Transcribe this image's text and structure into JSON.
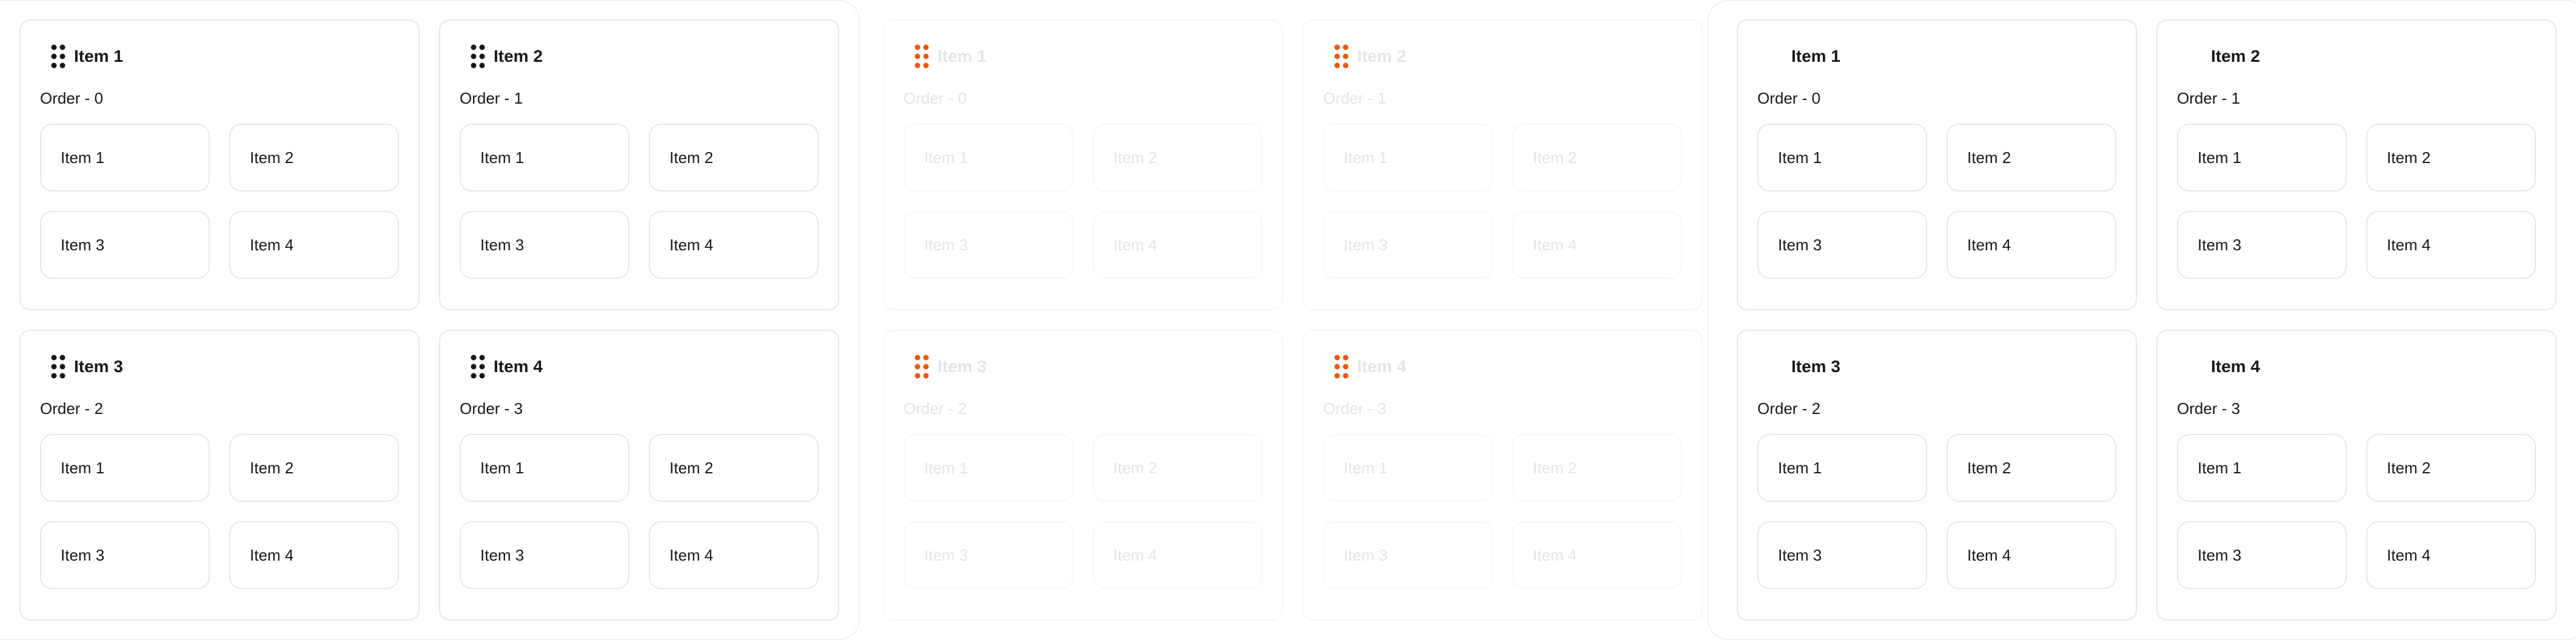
{
  "panels": [
    {
      "state": "normal",
      "handle_color": "#18181b",
      "cards": [
        {
          "title": "Item 1",
          "order": "Order - 0",
          "tiles": [
            "Item 1",
            "Item 2",
            "Item 3",
            "Item 4"
          ]
        },
        {
          "title": "Item 2",
          "order": "Order - 1",
          "tiles": [
            "Item 1",
            "Item 2",
            "Item 3",
            "Item 4"
          ]
        },
        {
          "title": "Item 3",
          "order": "Order - 2",
          "tiles": [
            "Item 1",
            "Item 2",
            "Item 3",
            "Item 4"
          ]
        },
        {
          "title": "Item 4",
          "order": "Order - 3",
          "tiles": [
            "Item 1",
            "Item 2",
            "Item 3",
            "Item 4"
          ]
        }
      ]
    },
    {
      "state": "dragging",
      "handle_color": "#ea580c",
      "cards": [
        {
          "title": "Item 1",
          "order": "Order - 0",
          "tiles": [
            "Item 1",
            "Item 2",
            "Item 3",
            "Item 4"
          ]
        },
        {
          "title": "Item 2",
          "order": "Order - 1",
          "tiles": [
            "Item 1",
            "Item 2",
            "Item 3",
            "Item 4"
          ]
        },
        {
          "title": "Item 3",
          "order": "Order - 2",
          "tiles": [
            "Item 1",
            "Item 2",
            "Item 3",
            "Item 4"
          ]
        },
        {
          "title": "Item 4",
          "order": "Order - 3",
          "tiles": [
            "Item 1",
            "Item 2",
            "Item 3",
            "Item 4"
          ]
        }
      ]
    },
    {
      "state": "no-handle",
      "cards": [
        {
          "title": "Item 1",
          "order": "Order - 0",
          "tiles": [
            "Item 1",
            "Item 2",
            "Item 3",
            "Item 4"
          ]
        },
        {
          "title": "Item 2",
          "order": "Order - 1",
          "tiles": [
            "Item 1",
            "Item 2",
            "Item 3",
            "Item 4"
          ]
        },
        {
          "title": "Item 3",
          "order": "Order - 2",
          "tiles": [
            "Item 1",
            "Item 2",
            "Item 3",
            "Item 4"
          ]
        },
        {
          "title": "Item 4",
          "order": "Order - 3",
          "tiles": [
            "Item 1",
            "Item 2",
            "Item 3",
            "Item 4"
          ]
        }
      ]
    }
  ],
  "icons": {
    "handle": "drag-handle-icon"
  }
}
